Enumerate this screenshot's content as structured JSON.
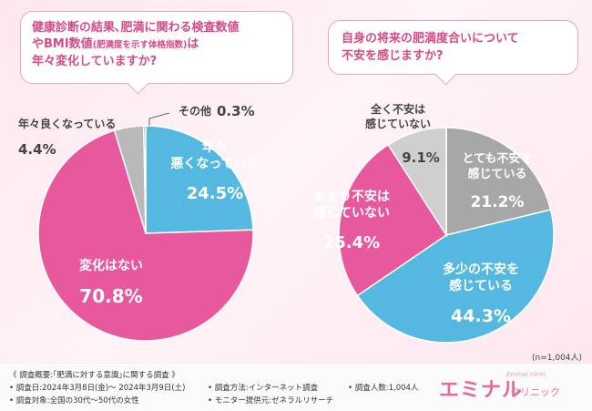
{
  "questions": {
    "q1": {
      "line1": "健康診断の結果､肥満に関わる検査数値",
      "line2_a": "やBMI数値",
      "line2_b": "(肥満度を示す体格指数)",
      "line2_c": "は",
      "line3": "年々変化していますか?"
    },
    "q2": {
      "line1": "自身の将来の肥満度合いについて",
      "line2": "不安を感じますか?"
    }
  },
  "chart_data": [
    {
      "type": "pie",
      "categories": [
        "年々悪くなっている",
        "変化はない",
        "年々良くなっている",
        "その他"
      ],
      "values": [
        24.5,
        70.8,
        4.4,
        0.3
      ],
      "value_labels": [
        "24.5%",
        "70.8%",
        "4.4%",
        "0.3%"
      ],
      "label_lines": [
        [
          "年々",
          "悪くなっている"
        ],
        [
          "変化はない"
        ],
        [
          "年々良くなっている"
        ],
        [
          "その他"
        ]
      ],
      "colors": [
        "#55b8e0",
        "#e8589c",
        "#b9b9b9",
        "#8e8e8e"
      ]
    },
    {
      "type": "pie",
      "categories": [
        "とても不安を感じている",
        "多少の不安を感じている",
        "あまり不安は感じていない",
        "全く不安は感じていない"
      ],
      "values": [
        21.2,
        44.3,
        25.4,
        9.1
      ],
      "value_labels": [
        "21.2%",
        "44.3%",
        "25.4%",
        "9.1%"
      ],
      "label_lines": [
        [
          "とても不安を",
          "感じている"
        ],
        [
          "多少の不安を",
          "感じている"
        ],
        [
          "あまり不安は",
          "感じていない"
        ],
        [
          "全く不安は",
          "感じていない"
        ]
      ],
      "colors": [
        "#a7a7a7",
        "#55b8e0",
        "#e8589c",
        "#cfcfcf"
      ]
    }
  ],
  "sample_note": "(n=1,004人)",
  "footer": {
    "summary": "《 調査概要:｢肥満に対する意識｣に関する調査 》",
    "date": "• 調査日:2024年3月8日(金)～ 2024年3月9日(土)",
    "method": "• 調査方法:インターネット調査",
    "count": "• 調査人数:1,004人",
    "target": "• 調査対象:全国の30代～50代の女性",
    "provider": "• モニター提供元:ゼネラルリサーチ"
  },
  "logo": {
    "main": "エミナル",
    "sub": "クリニック",
    "en": "Eminal clinic"
  }
}
